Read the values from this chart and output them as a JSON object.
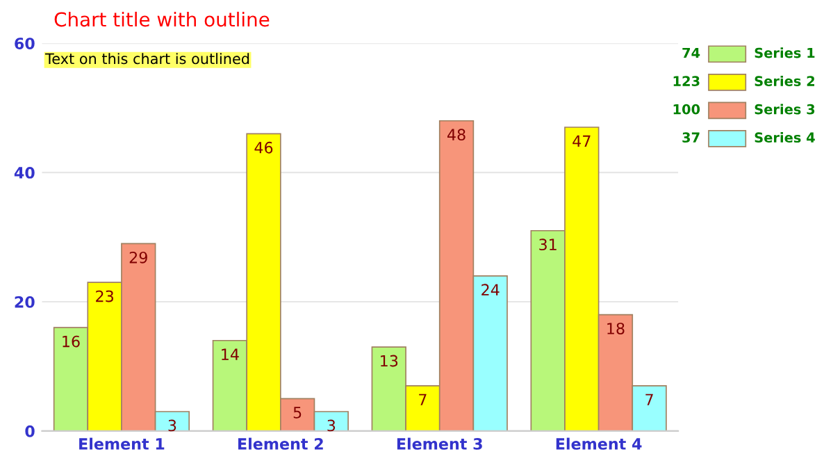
{
  "chart_data": {
    "type": "bar",
    "title": "Chart title with outline",
    "categories": [
      "Element 1",
      "Element 2",
      "Element 3",
      "Element 4"
    ],
    "series": [
      {
        "name": "Series 1",
        "color": "#b8f77a",
        "values": [
          16,
          14,
          13,
          31
        ]
      },
      {
        "name": "Series 2",
        "color": "#ffff00",
        "values": [
          23,
          46,
          7,
          47
        ]
      },
      {
        "name": "Series 3",
        "color": "#f7957a",
        "values": [
          29,
          5,
          48,
          18
        ]
      },
      {
        "name": "Series 4",
        "color": "#99ffff",
        "values": [
          3,
          3,
          24,
          7
        ]
      }
    ],
    "annotations": [
      "Text on this chart is outlined",
      "74",
      "123",
      "100",
      "37"
    ],
    "ylim": [
      0,
      60
    ],
    "yticks": [
      0,
      20,
      40,
      60
    ],
    "grid": "y",
    "legend": "right",
    "data_labels": true
  }
}
